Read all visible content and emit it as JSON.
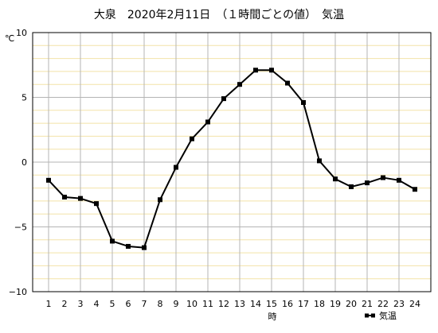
{
  "chart_data": {
    "type": "line",
    "title": "大泉　2020年2月11日　（１時間ごとの値）　気温",
    "xlabel": "時",
    "ylabel": "℃",
    "ylim": [
      -10,
      10
    ],
    "yticks": [
      10,
      5,
      0,
      -5,
      -10
    ],
    "x": [
      1,
      2,
      3,
      4,
      5,
      6,
      7,
      8,
      9,
      10,
      11,
      12,
      13,
      14,
      15,
      16,
      17,
      18,
      19,
      20,
      21,
      22,
      23,
      24
    ],
    "series": [
      {
        "name": "気温",
        "values": [
          -1.4,
          -2.7,
          -2.8,
          -3.2,
          -6.1,
          -6.5,
          -6.6,
          -2.9,
          -0.4,
          1.8,
          3.1,
          4.9,
          6.0,
          7.1,
          7.1,
          6.1,
          4.6,
          0.1,
          -1.3,
          -1.9,
          -1.6,
          -1.2,
          -1.4,
          -2.1
        ]
      }
    ],
    "legend_position": "bottom-right",
    "grid": true,
    "colors": {
      "line": "#000000",
      "major_grid": "#b4b4b4",
      "minor_grid": "#f3e3a8",
      "frame": "#000000"
    }
  }
}
